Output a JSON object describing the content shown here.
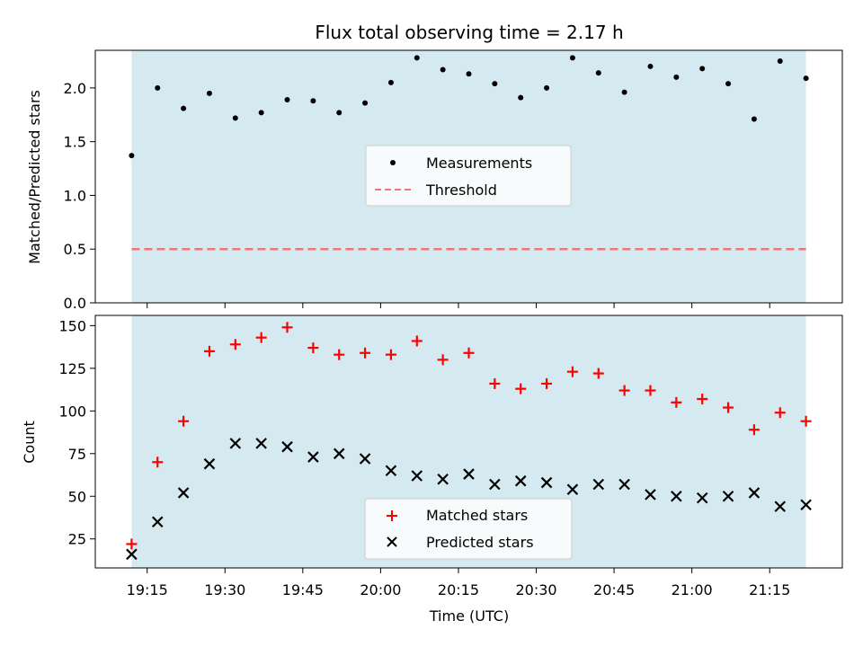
{
  "colors": {
    "shade": "#d5eaf0",
    "measure": "#000000",
    "threshold": "#ef7777",
    "matched": "#ff0000",
    "predicted": "#000000"
  },
  "chart_data": [
    {
      "type": "scatter",
      "title": "Flux total observing time = 2.17 h",
      "ylabel": "Matched/Predicted stars",
      "xlabel": "",
      "ylim": [
        0,
        2.35
      ],
      "yticks": [
        0,
        0.5,
        1.0,
        1.5,
        2.0
      ],
      "ytick_labels": [
        "0.0",
        "0.5",
        "1.0",
        "1.5",
        "2.0"
      ],
      "legend_position": "center",
      "shaded_span": [
        "19:12",
        "21:22"
      ],
      "series": [
        {
          "name": "Measurements",
          "marker": "dot",
          "x": [
            "19:12",
            "19:17",
            "19:22",
            "19:27",
            "19:32",
            "19:37",
            "19:42",
            "19:47",
            "19:52",
            "19:57",
            "20:02",
            "20:07",
            "20:12",
            "20:17",
            "20:22",
            "20:27",
            "20:32",
            "20:37",
            "20:42",
            "20:47",
            "20:52",
            "20:57",
            "21:02",
            "21:07",
            "21:12",
            "21:17",
            "21:22"
          ],
          "y": [
            1.37,
            2.0,
            1.81,
            1.95,
            1.72,
            1.77,
            1.89,
            1.88,
            1.77,
            1.86,
            2.05,
            2.28,
            2.17,
            2.13,
            2.04,
            1.91,
            2.0,
            2.28,
            2.14,
            1.96,
            2.2,
            2.1,
            2.18,
            2.04,
            1.71,
            2.25,
            2.09
          ]
        },
        {
          "name": "Threshold",
          "marker": "dashed-line",
          "x": [
            "19:12",
            "21:22"
          ],
          "y": [
            0.5,
            0.5
          ]
        }
      ]
    },
    {
      "type": "scatter",
      "title": "",
      "ylabel": "Count",
      "xlabel": "Time (UTC)",
      "ylim": [
        8,
        156
      ],
      "yticks": [
        25,
        50,
        75,
        100,
        125,
        150
      ],
      "ytick_labels": [
        "25",
        "50",
        "75",
        "100",
        "125",
        "150"
      ],
      "xticks": [
        "19:15",
        "19:30",
        "19:45",
        "20:00",
        "20:15",
        "20:30",
        "20:45",
        "21:00",
        "21:15"
      ],
      "xlim": [
        "19:05",
        "21:29"
      ],
      "legend_position": "lower center",
      "shaded_span": [
        "19:12",
        "21:22"
      ],
      "series": [
        {
          "name": "Matched stars",
          "marker": "plus",
          "x": [
            "19:12",
            "19:17",
            "19:22",
            "19:27",
            "19:32",
            "19:37",
            "19:42",
            "19:47",
            "19:52",
            "19:57",
            "20:02",
            "20:07",
            "20:12",
            "20:17",
            "20:22",
            "20:27",
            "20:32",
            "20:37",
            "20:42",
            "20:47",
            "20:52",
            "20:57",
            "21:02",
            "21:07",
            "21:12",
            "21:17",
            "21:22"
          ],
          "y": [
            22,
            70,
            94,
            135,
            139,
            143,
            149,
            137,
            133,
            134,
            133,
            141,
            130,
            134,
            116,
            113,
            116,
            123,
            122,
            112,
            112,
            105,
            107,
            102,
            89,
            99,
            94
          ]
        },
        {
          "name": "Predicted stars",
          "marker": "x",
          "x": [
            "19:12",
            "19:17",
            "19:22",
            "19:27",
            "19:32",
            "19:37",
            "19:42",
            "19:47",
            "19:52",
            "19:57",
            "20:02",
            "20:07",
            "20:12",
            "20:17",
            "20:22",
            "20:27",
            "20:32",
            "20:37",
            "20:42",
            "20:47",
            "20:52",
            "20:57",
            "21:02",
            "21:07",
            "21:12",
            "21:17",
            "21:22"
          ],
          "y": [
            16,
            35,
            52,
            69,
            81,
            81,
            79,
            73,
            75,
            72,
            65,
            62,
            60,
            63,
            57,
            59,
            58,
            54,
            57,
            57,
            51,
            50,
            49,
            50,
            52,
            44,
            45
          ]
        }
      ]
    }
  ]
}
